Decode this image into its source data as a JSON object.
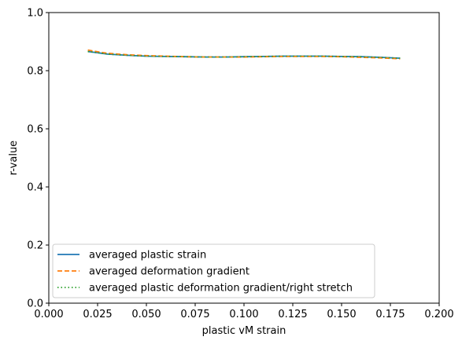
{
  "chart_data": {
    "type": "line",
    "title": "",
    "xlabel": "plastic vM strain",
    "ylabel": "r-value",
    "xlim": [
      0.0,
      0.2
    ],
    "ylim": [
      0.0,
      1.0
    ],
    "xticks": [
      "0.000",
      "0.025",
      "0.050",
      "0.075",
      "0.100",
      "0.125",
      "0.150",
      "0.175",
      "0.200"
    ],
    "yticks": [
      "0.0",
      "0.2",
      "0.4",
      "0.6",
      "0.8",
      "1.0"
    ],
    "grid": false,
    "legend_position": "lower-left",
    "series": [
      {
        "name": "averaged plastic strain",
        "color": "#1f77b4",
        "style": "solid",
        "x": [
          0.02,
          0.025,
          0.03,
          0.04,
          0.05,
          0.06,
          0.07,
          0.08,
          0.09,
          0.1,
          0.11,
          0.12,
          0.13,
          0.14,
          0.15,
          0.16,
          0.17,
          0.18
        ],
        "y": [
          0.866,
          0.862,
          0.857,
          0.853,
          0.85,
          0.849,
          0.848,
          0.847,
          0.847,
          0.848,
          0.849,
          0.85,
          0.85,
          0.85,
          0.849,
          0.848,
          0.846,
          0.843
        ]
      },
      {
        "name": "averaged deformation gradient",
        "color": "#ff7f0e",
        "style": "dashed",
        "x": [
          0.02,
          0.025,
          0.03,
          0.04,
          0.05,
          0.06,
          0.07,
          0.08,
          0.09,
          0.1,
          0.11,
          0.12,
          0.13,
          0.14,
          0.15,
          0.16,
          0.17,
          0.18
        ],
        "y": [
          0.871,
          0.865,
          0.86,
          0.855,
          0.852,
          0.85,
          0.848,
          0.847,
          0.847,
          0.847,
          0.848,
          0.849,
          0.849,
          0.849,
          0.848,
          0.846,
          0.844,
          0.841
        ]
      },
      {
        "name": "averaged plastic deformation gradient/right stretch",
        "color": "#2ca02c",
        "style": "dotted",
        "x": [
          0.02,
          0.025,
          0.03,
          0.04,
          0.05,
          0.06,
          0.07,
          0.08,
          0.09,
          0.1,
          0.11,
          0.12,
          0.13,
          0.14,
          0.15,
          0.16,
          0.17,
          0.18
        ],
        "y": [
          0.866,
          0.862,
          0.857,
          0.853,
          0.85,
          0.849,
          0.848,
          0.847,
          0.847,
          0.848,
          0.849,
          0.85,
          0.85,
          0.85,
          0.849,
          0.848,
          0.846,
          0.843
        ]
      }
    ]
  }
}
